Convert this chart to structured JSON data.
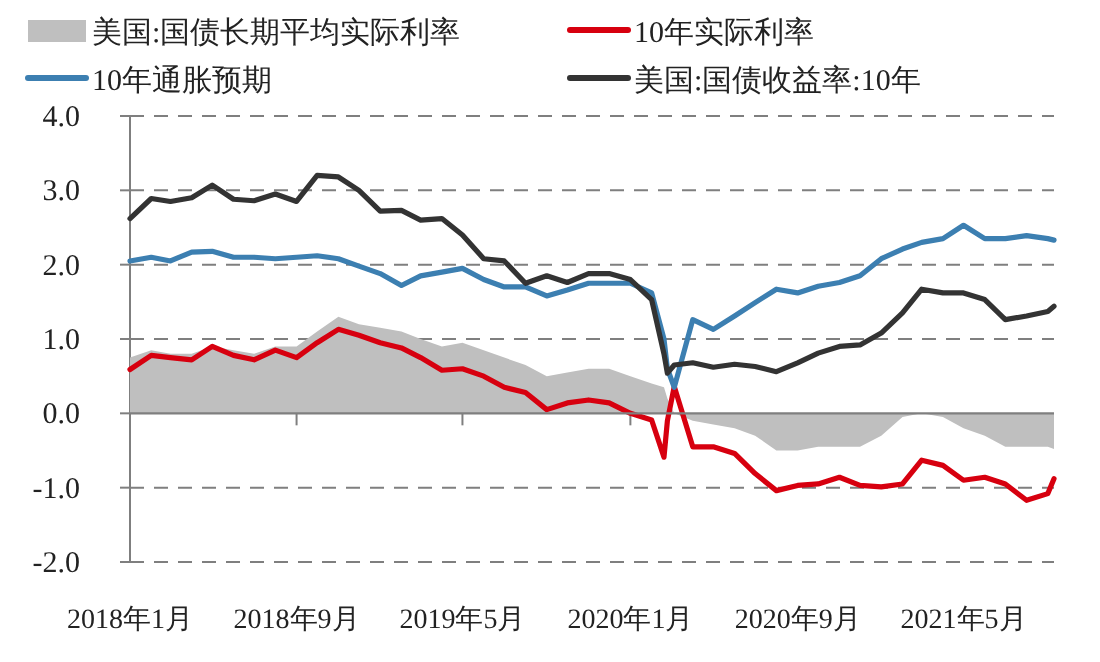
{
  "chart_data": {
    "type": "line",
    "x": [
      "2018-01-01",
      "2018-02-01",
      "2018-03-01",
      "2018-04-01",
      "2018-05-01",
      "2018-06-01",
      "2018-07-01",
      "2018-08-01",
      "2018-09-01",
      "2018-10-01",
      "2018-11-01",
      "2018-12-01",
      "2019-01-01",
      "2019-02-01",
      "2019-03-01",
      "2019-04-01",
      "2019-05-01",
      "2019-06-01",
      "2019-07-01",
      "2019-08-01",
      "2019-09-01",
      "2019-10-01",
      "2019-11-01",
      "2019-12-01",
      "2020-01-01",
      "2020-02-01",
      "2020-02-19",
      "2020-02-24",
      "2020-03-05",
      "2020-04-01",
      "2020-05-01",
      "2020-06-01",
      "2020-07-01",
      "2020-08-01",
      "2020-09-01",
      "2020-10-01",
      "2020-11-01",
      "2020-12-01",
      "2021-01-01",
      "2021-02-01",
      "2021-03-01",
      "2021-04-01",
      "2021-05-01",
      "2021-06-01",
      "2021-07-01",
      "2021-08-01",
      "2021-09-01",
      "2021-09-10"
    ],
    "series": [
      {
        "name": "美国:国债长期平均实际利率",
        "type": "area",
        "color": "#bfbfbf",
        "values": [
          0.75,
          0.85,
          0.8,
          0.8,
          0.9,
          0.85,
          0.8,
          0.9,
          0.9,
          1.1,
          1.3,
          1.2,
          1.15,
          1.1,
          1.0,
          0.9,
          0.95,
          0.85,
          0.75,
          0.65,
          0.5,
          0.55,
          0.6,
          0.6,
          0.5,
          0.4,
          0.35,
          0.2,
          0.0,
          -0.1,
          -0.15,
          -0.2,
          -0.3,
          -0.5,
          -0.5,
          -0.45,
          -0.45,
          -0.45,
          -0.3,
          -0.05,
          0.0,
          -0.05,
          -0.2,
          -0.3,
          -0.45,
          -0.45,
          -0.45,
          -0.48
        ]
      },
      {
        "name": "10年实际利率",
        "color": "#d7000f",
        "values": [
          0.59,
          0.78,
          0.75,
          0.72,
          0.9,
          0.78,
          0.72,
          0.85,
          0.75,
          0.95,
          1.13,
          1.05,
          0.95,
          0.88,
          0.75,
          0.58,
          0.6,
          0.5,
          0.35,
          0.28,
          0.05,
          0.14,
          0.18,
          0.14,
          0.0,
          -0.09,
          -0.59,
          -0.1,
          0.36,
          -0.45,
          -0.45,
          -0.54,
          -0.81,
          -1.04,
          -0.97,
          -0.95,
          -0.86,
          -0.97,
          -0.99,
          -0.95,
          -0.63,
          -0.7,
          -0.9,
          -0.86,
          -0.95,
          -1.17,
          -1.08,
          -0.88
        ]
      },
      {
        "name": "10年通胀预期",
        "color": "#3c7fb1",
        "values": [
          2.05,
          2.1,
          2.05,
          2.17,
          2.18,
          2.1,
          2.1,
          2.08,
          2.1,
          2.12,
          2.08,
          1.98,
          1.88,
          1.72,
          1.85,
          1.9,
          1.95,
          1.8,
          1.7,
          1.7,
          1.58,
          1.66,
          1.75,
          1.75,
          1.75,
          1.62,
          1.0,
          0.6,
          0.35,
          1.26,
          1.13,
          1.31,
          1.49,
          1.67,
          1.62,
          1.71,
          1.76,
          1.85,
          2.08,
          2.21,
          2.3,
          2.35,
          2.53,
          2.35,
          2.35,
          2.39,
          2.35,
          2.33
        ]
      },
      {
        "name": "美国:国债收益率:10年",
        "color": "#333333",
        "values": [
          2.62,
          2.89,
          2.85,
          2.9,
          3.07,
          2.88,
          2.86,
          2.95,
          2.85,
          3.2,
          3.18,
          3.0,
          2.72,
          2.73,
          2.6,
          2.62,
          2.4,
          2.08,
          2.05,
          1.75,
          1.85,
          1.76,
          1.88,
          1.88,
          1.8,
          1.53,
          0.8,
          0.54,
          0.65,
          0.68,
          0.62,
          0.66,
          0.63,
          0.56,
          0.68,
          0.81,
          0.9,
          0.92,
          1.08,
          1.35,
          1.67,
          1.62,
          1.62,
          1.53,
          1.26,
          1.31,
          1.37,
          1.44
        ]
      }
    ],
    "xlim": [
      "2018-01-01",
      "2021-09-10"
    ],
    "xticks": [
      {
        "value": "2018-01-01",
        "label": "2018年1月"
      },
      {
        "value": "2018-09-01",
        "label": "2018年9月"
      },
      {
        "value": "2019-05-01",
        "label": "2019年5月"
      },
      {
        "value": "2020-01-01",
        "label": "2020年1月"
      },
      {
        "value": "2020-09-01",
        "label": "2020年9月"
      },
      {
        "value": "2021-05-01",
        "label": "2021年5月"
      }
    ],
    "ylim": [
      -2,
      4
    ],
    "yticks": [
      {
        "value": -2,
        "label": "-2.0"
      },
      {
        "value": -1,
        "label": "-1.0"
      },
      {
        "value": 0,
        "label": "0.0"
      },
      {
        "value": 1,
        "label": "1.0"
      },
      {
        "value": 2,
        "label": "2.0"
      },
      {
        "value": 3,
        "label": "3.0"
      },
      {
        "value": 4,
        "label": "4.0"
      }
    ],
    "grid": "y",
    "legend": "top"
  }
}
